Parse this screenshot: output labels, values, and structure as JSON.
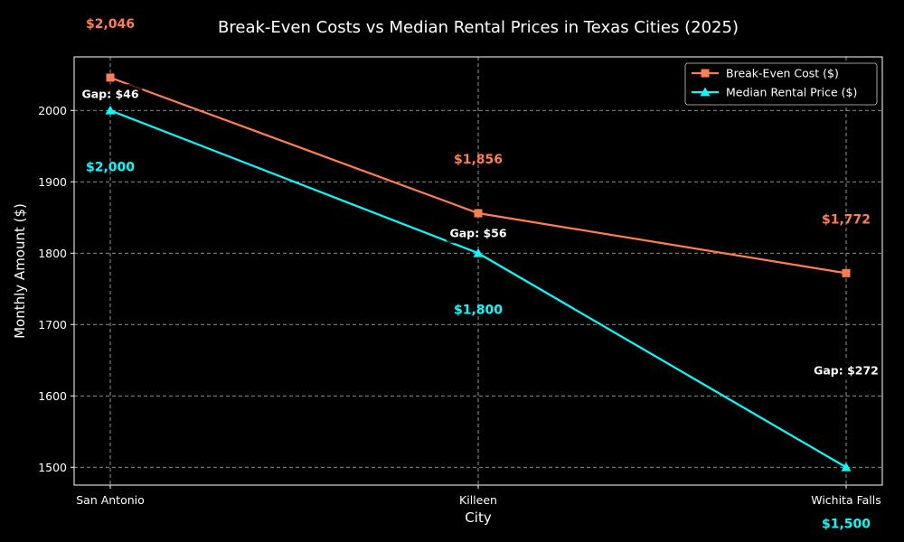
{
  "chart_data": {
    "type": "line",
    "title": "Break-Even Costs vs Median Rental Prices in Texas Cities (2025)",
    "xlabel": "City",
    "ylabel": "Monthly Amount ($)",
    "categories": [
      "San Antonio",
      "Killeen",
      "Wichita Falls"
    ],
    "ylim": [
      1475,
      2075
    ],
    "yticks": [
      1500,
      1600,
      1700,
      1800,
      1900,
      2000
    ],
    "grid": true,
    "legend_position": "top-right",
    "series": [
      {
        "name": "Break-Even Cost ($)",
        "values": [
          2046,
          1856,
          1772
        ],
        "value_labels": [
          "$2,046",
          "$1,856",
          "$1,772"
        ],
        "color": "#ff7f50",
        "marker": "square"
      },
      {
        "name": "Median Rental Price ($)",
        "values": [
          2000,
          1800,
          1500
        ],
        "value_labels": [
          "$2,000",
          "$1,800",
          "$1,500"
        ],
        "color": "#00ffff",
        "marker": "triangle"
      }
    ],
    "gap_labels": [
      "Gap: $46",
      "Gap: $56",
      "Gap: $272"
    ]
  },
  "colors": {
    "background": "#000000",
    "foreground": "#ffffff",
    "grid": "#bbbbbb",
    "gap_box": "#000000"
  }
}
